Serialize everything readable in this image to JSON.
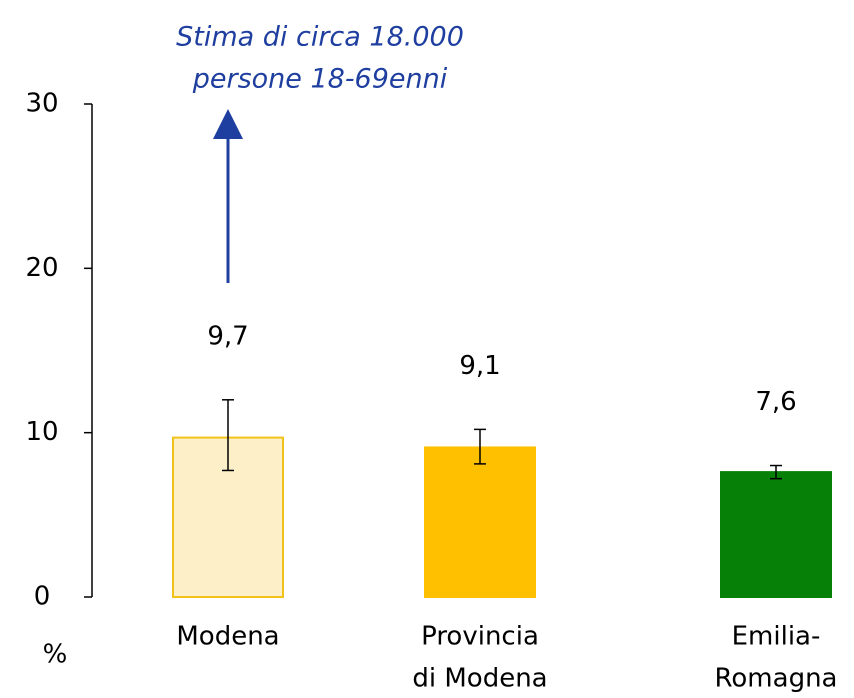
{
  "chart_data": {
    "type": "bar",
    "annotation": [
      "Stima di circa 18.000",
      "persone 18-69enni"
    ],
    "ylabel": "%",
    "categories": [
      [
        "Modena"
      ],
      [
        "Provincia",
        "di Modena"
      ],
      [
        "Emilia-",
        "Romagna"
      ]
    ],
    "values": [
      9.7,
      9.1,
      7.6
    ],
    "value_labels": [
      "9,7",
      "9,1",
      "7,6"
    ],
    "ci_low": [
      7.7,
      8.1,
      7.2
    ],
    "ci_high": [
      12.0,
      10.2,
      8.0
    ],
    "colors": [
      "#fdf0c8",
      "#ffc000",
      "#078007"
    ],
    "edge_colors": [
      "#f2c21b",
      "#ffc000",
      "#078007"
    ],
    "ylim": [
      0,
      30
    ],
    "yticks": [
      0,
      10,
      20,
      30
    ]
  }
}
